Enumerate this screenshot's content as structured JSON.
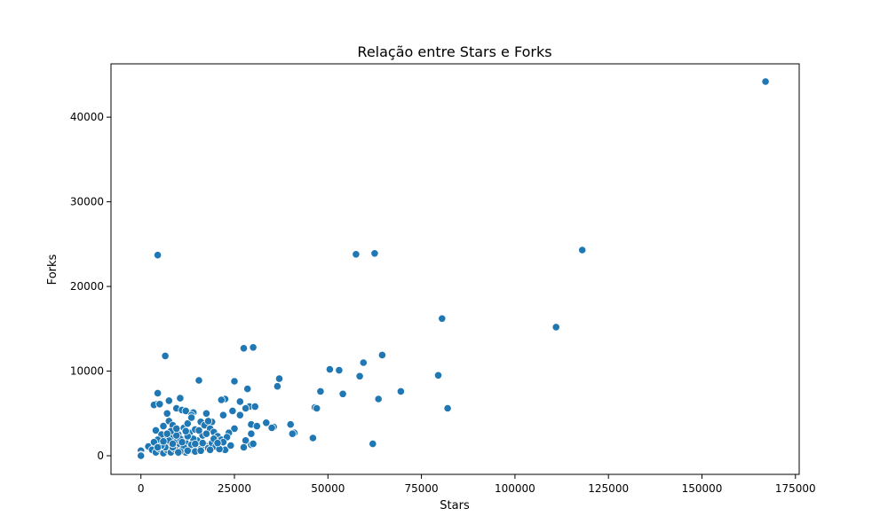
{
  "chart_data": {
    "type": "scatter",
    "title": "Relação entre Stars e Forks",
    "xlabel": "Stars",
    "ylabel": "Forks",
    "xlim": [
      -8000,
      176000
    ],
    "ylim": [
      -2200,
      46300
    ],
    "xticks": [
      0,
      25000,
      50000,
      75000,
      100000,
      125000,
      150000,
      175000
    ],
    "xtick_labels": [
      "0",
      "25000",
      "50000",
      "75000",
      "100000",
      "125000",
      "150000",
      "175000"
    ],
    "yticks": [
      0,
      10000,
      20000,
      30000,
      40000
    ],
    "ytick_labels": [
      "0",
      "10000",
      "20000",
      "30000",
      "40000"
    ],
    "grid": false,
    "marker_color": "#1f77b4",
    "points": [
      [
        167000,
        44200
      ],
      [
        118000,
        24300
      ],
      [
        111000,
        15200
      ],
      [
        80500,
        16200
      ],
      [
        79500,
        9500
      ],
      [
        82000,
        5600
      ],
      [
        57500,
        23800
      ],
      [
        62500,
        23900
      ],
      [
        4500,
        23700
      ],
      [
        64500,
        11900
      ],
      [
        59500,
        11000
      ],
      [
        58500,
        9400
      ],
      [
        50500,
        10200
      ],
      [
        53000,
        10100
      ],
      [
        54000,
        7300
      ],
      [
        48000,
        7600
      ],
      [
        69500,
        7600
      ],
      [
        63500,
        6700
      ],
      [
        46500,
        5700
      ],
      [
        47000,
        5600
      ],
      [
        46000,
        2100
      ],
      [
        62000,
        1400
      ],
      [
        6500,
        11800
      ],
      [
        27500,
        12700
      ],
      [
        30000,
        12800
      ],
      [
        15500,
        8900
      ],
      [
        25000,
        8800
      ],
      [
        37000,
        9100
      ],
      [
        36500,
        8200
      ],
      [
        28500,
        7900
      ],
      [
        4500,
        7400
      ],
      [
        10500,
        6800
      ],
      [
        22500,
        6700
      ],
      [
        21500,
        6600
      ],
      [
        7500,
        6500
      ],
      [
        26500,
        6400
      ],
      [
        4000,
        6100
      ],
      [
        3500,
        6000
      ],
      [
        5000,
        6100
      ],
      [
        9500,
        5600
      ],
      [
        29000,
        5800
      ],
      [
        30500,
        5800
      ],
      [
        28000,
        5600
      ],
      [
        11000,
        5400
      ],
      [
        12000,
        5300
      ],
      [
        24500,
        5300
      ],
      [
        14000,
        5100
      ],
      [
        7000,
        5000
      ],
      [
        17500,
        5000
      ],
      [
        13500,
        4800
      ],
      [
        22000,
        4800
      ],
      [
        26500,
        4800
      ],
      [
        19000,
        4000
      ],
      [
        33500,
        3900
      ],
      [
        40000,
        3700
      ],
      [
        29500,
        3700
      ],
      [
        31000,
        3500
      ],
      [
        35500,
        3400
      ],
      [
        35000,
        3300
      ],
      [
        25000,
        3200
      ],
      [
        41000,
        2700
      ],
      [
        40500,
        2600
      ],
      [
        23500,
        2700
      ],
      [
        29500,
        2600
      ],
      [
        28000,
        1800
      ],
      [
        27500,
        1000
      ],
      [
        29500,
        1300
      ],
      [
        22500,
        700
      ],
      [
        24000,
        1200
      ],
      [
        30000,
        1400
      ],
      [
        0,
        600
      ],
      [
        0,
        100
      ],
      [
        0,
        0
      ],
      [
        2000,
        1100
      ],
      [
        3500,
        900
      ],
      [
        5500,
        1400
      ],
      [
        4000,
        3000
      ],
      [
        6000,
        3500
      ],
      [
        7500,
        4100
      ],
      [
        8500,
        3600
      ],
      [
        9000,
        2900
      ],
      [
        10000,
        2500
      ],
      [
        11500,
        3300
      ],
      [
        12500,
        3800
      ],
      [
        13000,
        2700
      ],
      [
        14500,
        3100
      ],
      [
        16000,
        4000
      ],
      [
        17000,
        3600
      ],
      [
        18500,
        3200
      ],
      [
        19500,
        2800
      ],
      [
        20500,
        2300
      ],
      [
        21500,
        1900
      ],
      [
        23000,
        2200
      ],
      [
        16500,
        2400
      ],
      [
        15000,
        1800
      ],
      [
        14000,
        2000
      ],
      [
        12000,
        1500
      ],
      [
        11000,
        1900
      ],
      [
        10000,
        1200
      ],
      [
        9000,
        1700
      ],
      [
        8000,
        2200
      ],
      [
        7000,
        1300
      ],
      [
        6500,
        2000
      ],
      [
        5500,
        2500
      ],
      [
        4500,
        1900
      ],
      [
        3500,
        1600
      ],
      [
        3000,
        700
      ],
      [
        4000,
        400
      ],
      [
        5000,
        800
      ],
      [
        6000,
        300
      ],
      [
        7000,
        700
      ],
      [
        8000,
        400
      ],
      [
        9000,
        800
      ],
      [
        10000,
        300
      ],
      [
        11000,
        700
      ],
      [
        12000,
        400
      ],
      [
        13000,
        900
      ],
      [
        14000,
        600
      ],
      [
        15000,
        1100
      ],
      [
        16000,
        800
      ],
      [
        17000,
        1300
      ],
      [
        18000,
        900
      ],
      [
        19000,
        1500
      ],
      [
        20000,
        1100
      ],
      [
        21000,
        800
      ],
      [
        22000,
        1600
      ],
      [
        13500,
        1300
      ],
      [
        12500,
        2300
      ],
      [
        11500,
        1000
      ],
      [
        10500,
        2000
      ],
      [
        9500,
        2400
      ],
      [
        8500,
        1000
      ],
      [
        7500,
        1800
      ],
      [
        6500,
        1000
      ],
      [
        5500,
        1200
      ],
      [
        4500,
        1000
      ],
      [
        8000,
        2900
      ],
      [
        9500,
        3200
      ],
      [
        12000,
        2900
      ],
      [
        13500,
        4500
      ],
      [
        15500,
        3000
      ],
      [
        17500,
        2600
      ],
      [
        18000,
        4100
      ],
      [
        19500,
        2000
      ],
      [
        16500,
        1500
      ],
      [
        14500,
        1400
      ],
      [
        11000,
        1600
      ],
      [
        8500,
        1400
      ],
      [
        6000,
        1700
      ],
      [
        7000,
        2600
      ],
      [
        10500,
        500
      ],
      [
        12500,
        600
      ],
      [
        14500,
        500
      ],
      [
        16000,
        600
      ],
      [
        18500,
        700
      ],
      [
        20500,
        1500
      ],
      [
        10000,
        400
      ]
    ]
  }
}
